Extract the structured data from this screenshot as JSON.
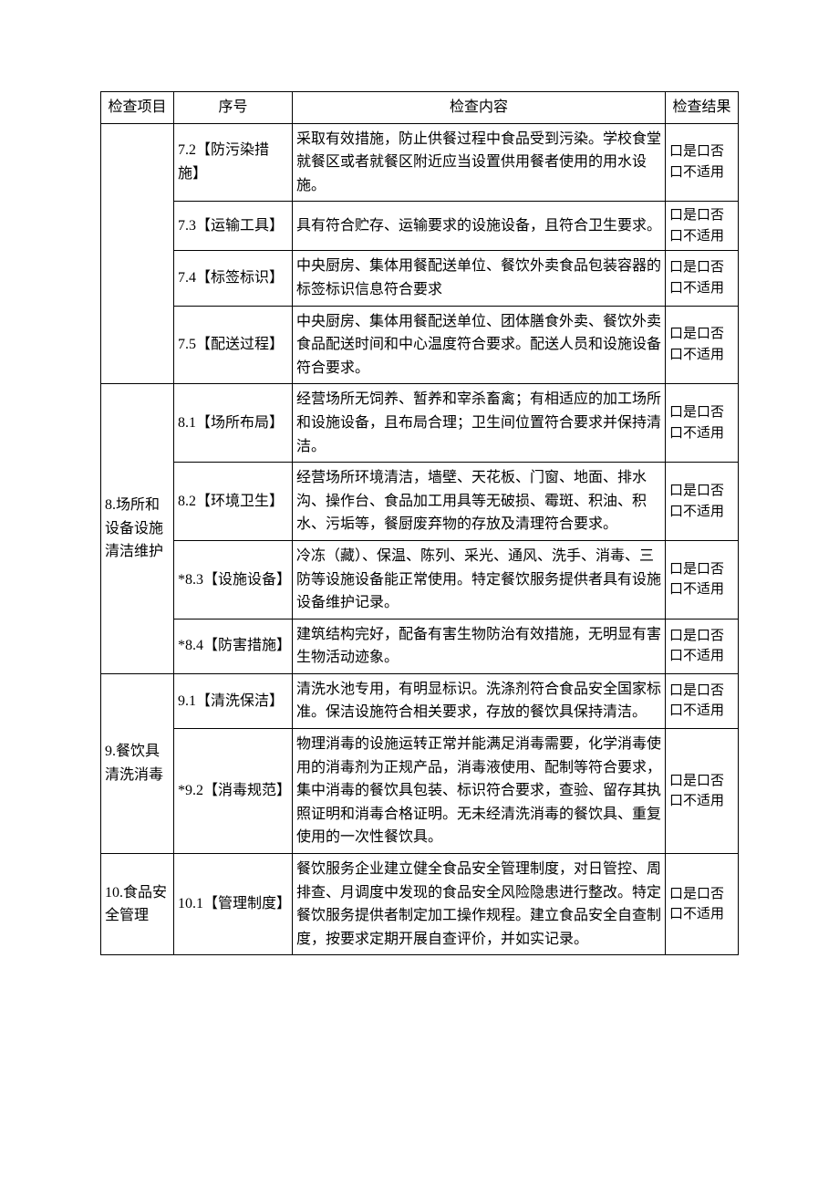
{
  "headers": {
    "category": "检查项目",
    "sequence": "序号",
    "content": "检查内容",
    "result": "检查结果"
  },
  "result_text": "口是口否\n口不适用",
  "blankCategory": "",
  "categories": {
    "cat8": "8.场所和设备设施清洁维护",
    "cat9": "9.餐饮具清洗消毒",
    "cat10": "10.食品安全管理"
  },
  "rows": [
    {
      "seq": "7.2【防污染措施】",
      "content": "采取有效措施，防止供餐过程中食品受到污染。学校食堂就餐区或者就餐区附近应当设置供用餐者使用的用水设施。"
    },
    {
      "seq": "7.3【运输工具】",
      "content": "具有符合贮存、运输要求的设施设备，且符合卫生要求。"
    },
    {
      "seq": "7.4【标签标识】",
      "content": "中央厨房、集体用餐配送单位、餐饮外卖食品包装容器的标签标识信息符合要求"
    },
    {
      "seq": "7.5【配送过程】",
      "content": "中央厨房、集体用餐配送单位、团体膳食外卖、餐饮外卖食品配送时间和中心温度符合要求。配送人员和设施设备符合要求。"
    },
    {
      "seq": "8.1【场所布局】",
      "content": "经营场所无饲养、暂养和宰杀畜禽；有相适应的加工场所和设施设备，且布局合理；卫生间位置符合要求并保持清洁。"
    },
    {
      "seq": "8.2【环境卫生】",
      "content": "经营场所环境清洁，墙壁、天花板、门窗、地面、排水沟、操作台、食品加工用具等无破损、霉斑、积油、积水、污垢等，餐厨废弃物的存放及清理符合要求。"
    },
    {
      "seq": "*8.3【设施设备】",
      "content": "冷冻（藏）、保温、陈列、采光、通风、洗手、消毒、三防等设施设备能正常使用。特定餐饮服务提供者具有设施设备维护记录。"
    },
    {
      "seq": "*8.4【防害措施】",
      "content": "建筑结构完好，配备有害生物防治有效措施，无明显有害生物活动迹象。"
    },
    {
      "seq": "9.1【清洗保洁】",
      "content": "清洗水池专用，有明显标识。洗涤剂符合食品安全国家标准。保洁设施符合相关要求，存放的餐饮具保持清洁。"
    },
    {
      "seq": "*9.2【消毒规范】",
      "content": "物理消毒的设施运转正常并能满足消毒需要，化学消毒使用的消毒剂为正规产品，消毒液使用、配制等符合要求，集中消毒的餐饮具包装、标识符合要求，查验、留存其执照证明和消毒合格证明。无未经清洗消毒的餐饮具、重复使用的一次性餐饮具。"
    },
    {
      "seq": "10.1【管理制度】",
      "content": "餐饮服务企业建立健全食品安全管理制度，对日管控、周排查、月调度中发现的食品安全风险隐患进行整改。特定餐饮服务提供者制定加工操作规程。建立食品安全自查制度，按要求定期开展自查评价，并如实记录。"
    }
  ]
}
